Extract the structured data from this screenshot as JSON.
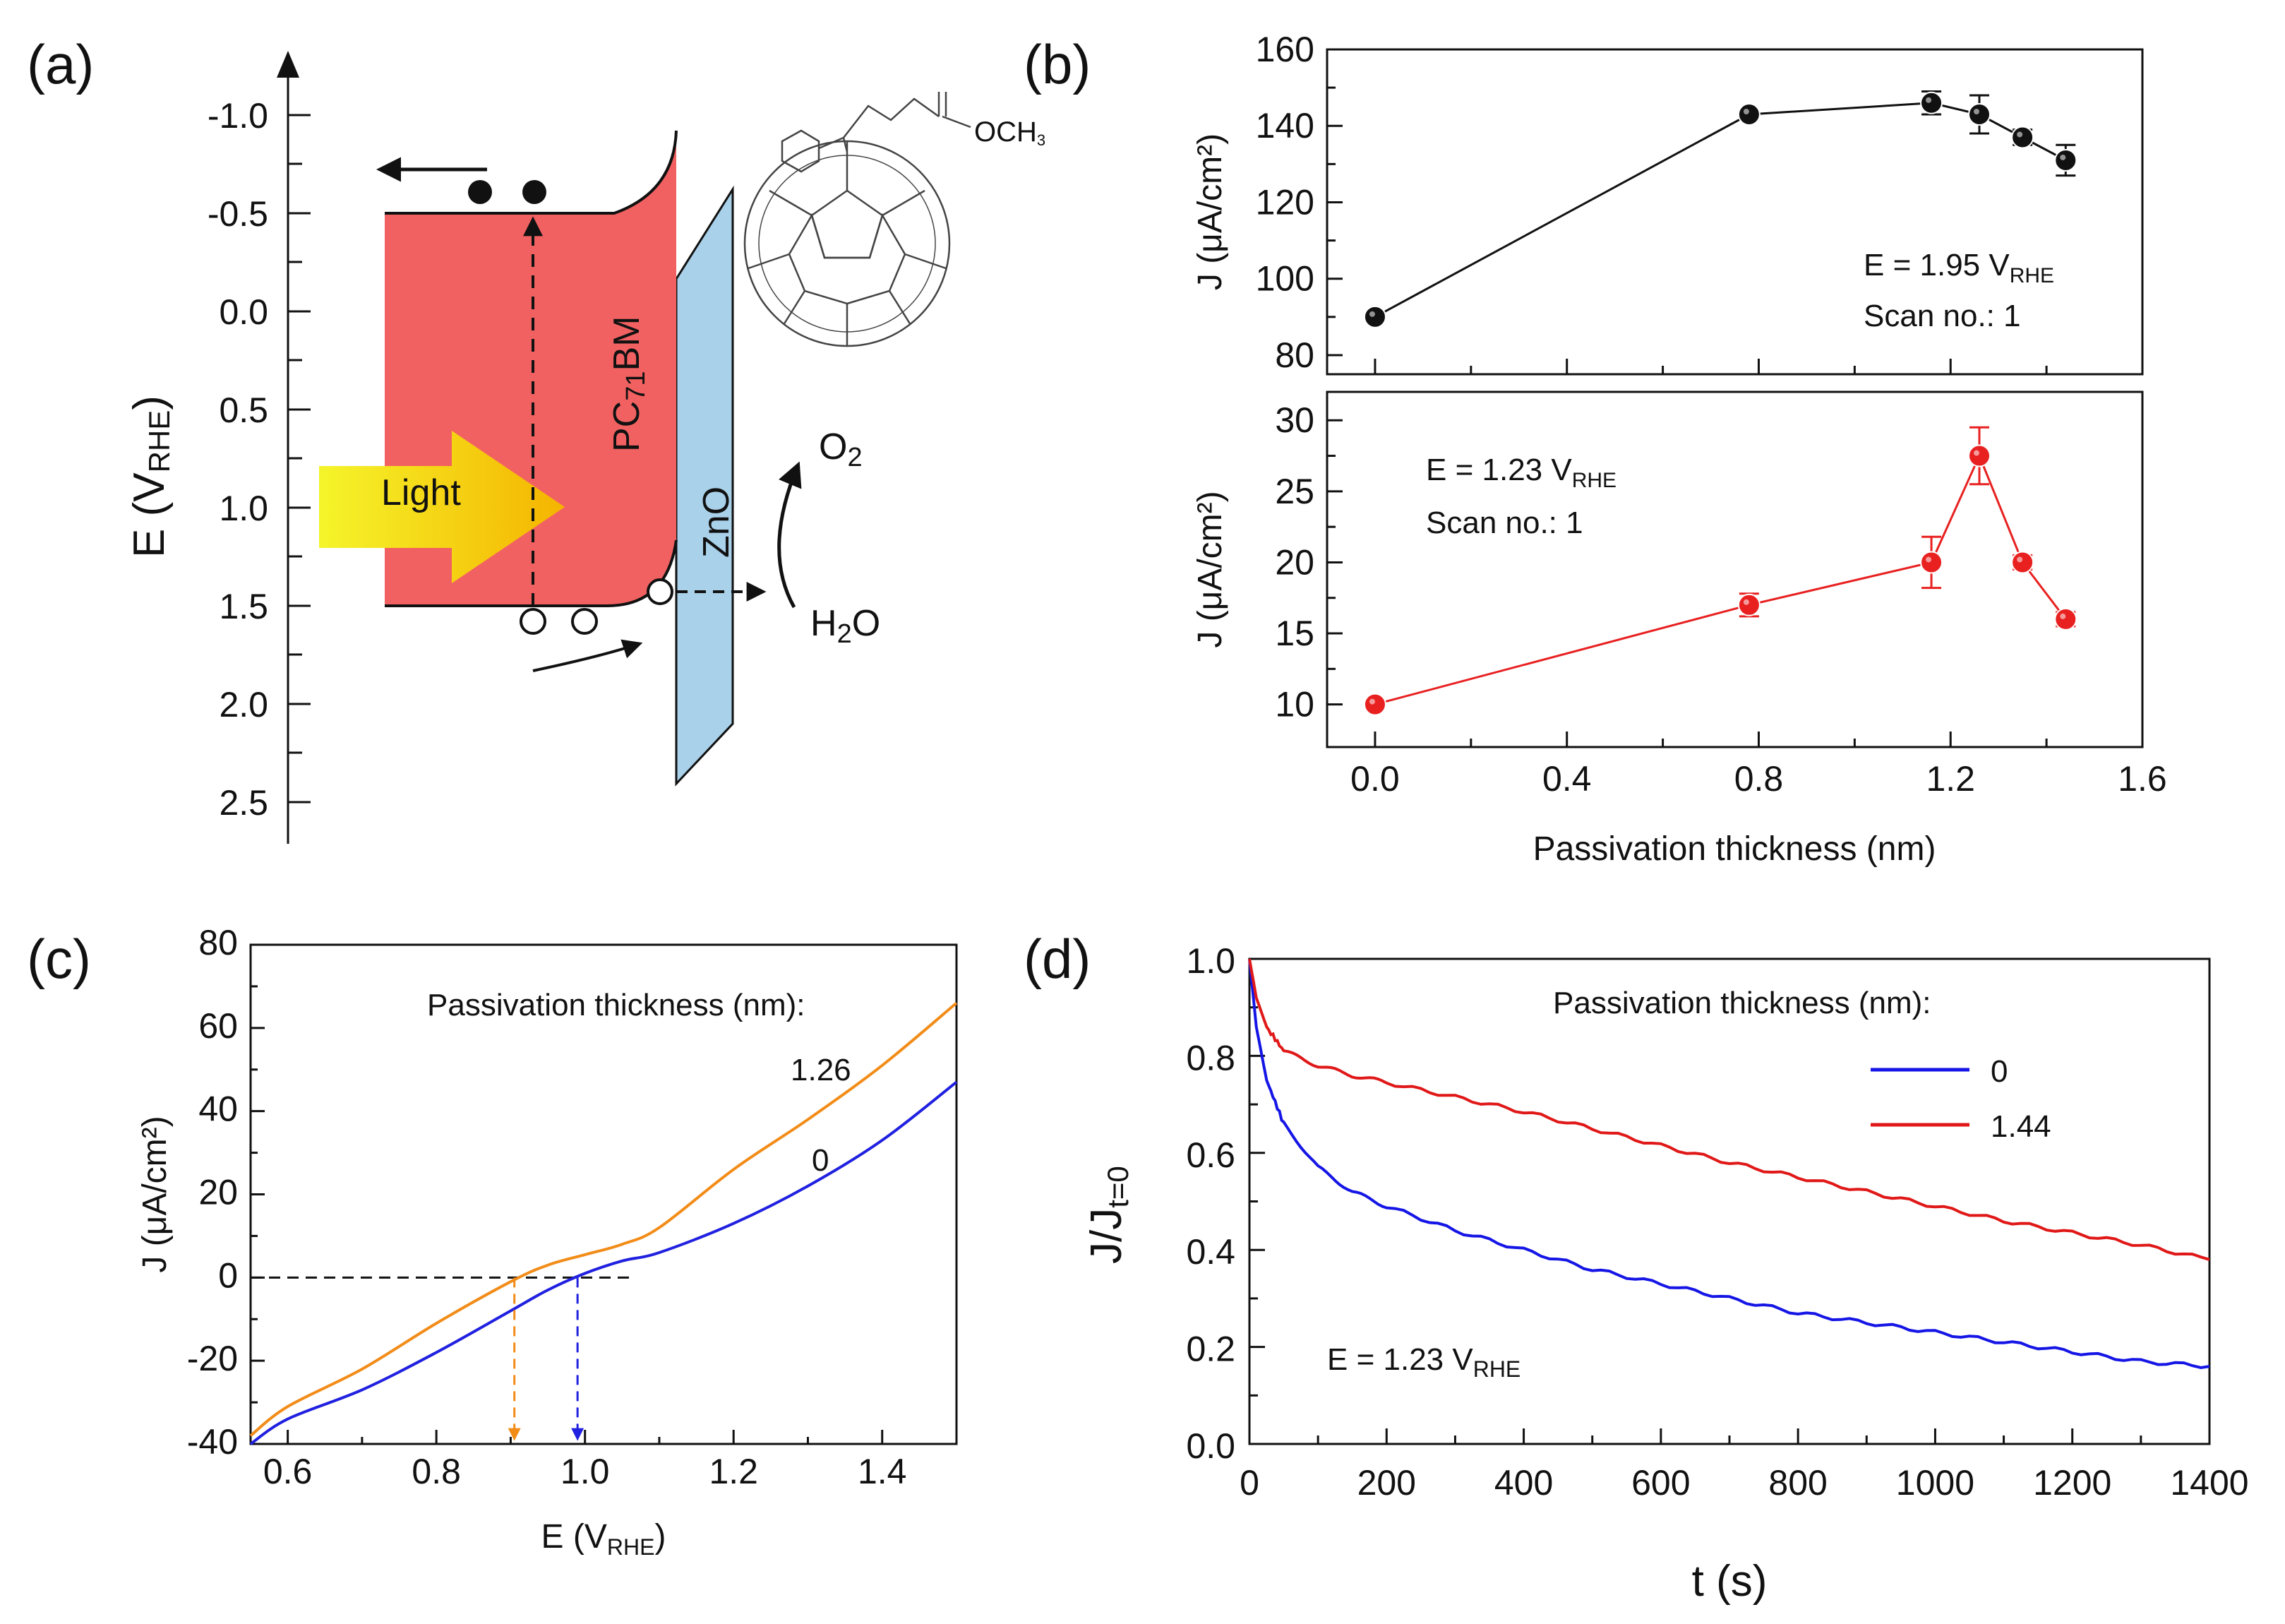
{
  "figure": {
    "panel_labels": [
      "(a)",
      "(b)",
      "(c)",
      "(d)"
    ]
  },
  "panel_a": {
    "ylabel_main": "E (V",
    "ylabel_sub": "RHE",
    "ylabel_close": ")",
    "ticks": [
      "-1.0",
      "-0.5",
      "0.0",
      "0.5",
      "1.0",
      "1.5",
      "2.0",
      "2.5"
    ],
    "light_label": "Light",
    "pcbm_pre": "PC",
    "pcbm_sub": "71",
    "pcbm_post": "BM",
    "zno_label": "ZnO",
    "o2_main": "O",
    "o2_sub": "2",
    "h2o_pre": "H",
    "h2o_sub": "2",
    "h2o_post": "O",
    "molecule_label": "OCH",
    "molecule_sub": "3",
    "colors": {
      "pcbm": "#f26161",
      "zno": "#a9d1ea",
      "arrow_start": "#f5f52a",
      "arrow_end": "#f5b400"
    }
  },
  "chart_data": [
    {
      "id": "b_top",
      "type": "line",
      "ylabel": "J (μA/cm²)",
      "ylim": [
        75,
        160
      ],
      "yticks": [
        80,
        100,
        120,
        140,
        160
      ],
      "xlim": [
        -0.1,
        1.6
      ],
      "x": [
        0,
        0.78,
        1.16,
        1.26,
        1.35,
        1.44
      ],
      "values": [
        90,
        143,
        146,
        143,
        137,
        131
      ],
      "err": [
        0,
        0,
        3,
        5,
        2,
        4
      ],
      "annotation_main": "E = 1.95 V",
      "annotation_sub": "RHE",
      "annotation2": "Scan no.: 1",
      "color": "#111111"
    },
    {
      "id": "b_bottom",
      "type": "line",
      "ylabel": "J (μA/cm²)",
      "ylim": [
        7,
        32
      ],
      "yticks": [
        10,
        15,
        20,
        25,
        30
      ],
      "xlim": [
        -0.1,
        1.6
      ],
      "xticks": [
        "0.0",
        "0.4",
        "0.8",
        "1.2",
        "1.6"
      ],
      "xlabel": "Passivation thickness (nm)",
      "x": [
        0,
        0.78,
        1.16,
        1.26,
        1.35,
        1.44
      ],
      "values": [
        10,
        17,
        20,
        27.5,
        20,
        16
      ],
      "err": [
        0,
        0.8,
        1.8,
        2,
        0.5,
        0.5
      ],
      "annotation_main": "E = 1.23 V",
      "annotation_sub": "RHE",
      "annotation2": "Scan no.: 1",
      "color": "#e82020"
    },
    {
      "id": "c",
      "type": "line",
      "xlabel_main": "E (V",
      "xlabel_sub": "RHE",
      "xlabel_close": ")",
      "ylabel": "J (μA/cm²)",
      "xlim": [
        0.55,
        1.5
      ],
      "ylim": [
        -40,
        80
      ],
      "xticks": [
        "0.6",
        "0.8",
        "1.0",
        "1.2",
        "1.4"
      ],
      "yticks": [
        "-40",
        "-20",
        "0",
        "20",
        "40",
        "60",
        "80"
      ],
      "legend_title": "Passivation thickness (nm):",
      "series": [
        {
          "name": "1.26",
          "color": "#f28c18",
          "x": [
            0.55,
            0.6,
            0.7,
            0.8,
            0.9,
            0.95,
            1.0,
            1.05,
            1.1,
            1.2,
            1.3,
            1.4,
            1.5
          ],
          "values": [
            -38,
            -31,
            -22,
            -11,
            -1,
            3,
            5.5,
            8,
            12,
            26,
            38,
            51,
            66
          ]
        },
        {
          "name": "0",
          "color": "#2020e0",
          "x": [
            0.55,
            0.6,
            0.7,
            0.8,
            0.9,
            0.95,
            1.0,
            1.05,
            1.1,
            1.2,
            1.3,
            1.4,
            1.5
          ],
          "values": [
            -40,
            -34,
            -27,
            -18,
            -8,
            -3,
            1,
            4,
            6,
            13,
            22,
            33,
            47
          ]
        }
      ],
      "onset": {
        "orange_x": 0.905,
        "blue_x": 0.99
      }
    },
    {
      "id": "d",
      "type": "line",
      "xlabel": "t (s)",
      "ylabel_main": "J/J",
      "ylabel_sub": "t=0",
      "xlim": [
        0,
        1400
      ],
      "ylim": [
        0,
        1.0
      ],
      "xticks": [
        "0",
        "200",
        "400",
        "600",
        "800",
        "1000",
        "1200",
        "1400"
      ],
      "yticks": [
        "0.0",
        "0.2",
        "0.4",
        "0.6",
        "0.8",
        "1.0"
      ],
      "legend_title": "Passivation thickness (nm):",
      "annotation_main": "E = 1.23 V",
      "annotation_sub": "RHE",
      "series": [
        {
          "name": "0",
          "color": "#1515e6",
          "x": [
            0,
            10,
            25,
            50,
            100,
            150,
            200,
            300,
            400,
            500,
            600,
            700,
            800,
            900,
            1000,
            1100,
            1200,
            1300,
            1400
          ],
          "values": [
            1.0,
            0.86,
            0.75,
            0.66,
            0.57,
            0.52,
            0.49,
            0.44,
            0.4,
            0.36,
            0.33,
            0.3,
            0.27,
            0.25,
            0.23,
            0.21,
            0.19,
            0.17,
            0.16
          ]
        },
        {
          "name": "1.44",
          "color": "#e01818",
          "x": [
            0,
            10,
            25,
            50,
            100,
            150,
            200,
            300,
            400,
            500,
            600,
            700,
            800,
            900,
            1000,
            1100,
            1200,
            1300,
            1400
          ],
          "values": [
            1.0,
            0.92,
            0.86,
            0.81,
            0.78,
            0.76,
            0.745,
            0.715,
            0.685,
            0.65,
            0.615,
            0.58,
            0.55,
            0.52,
            0.49,
            0.46,
            0.435,
            0.41,
            0.38
          ]
        }
      ]
    }
  ]
}
